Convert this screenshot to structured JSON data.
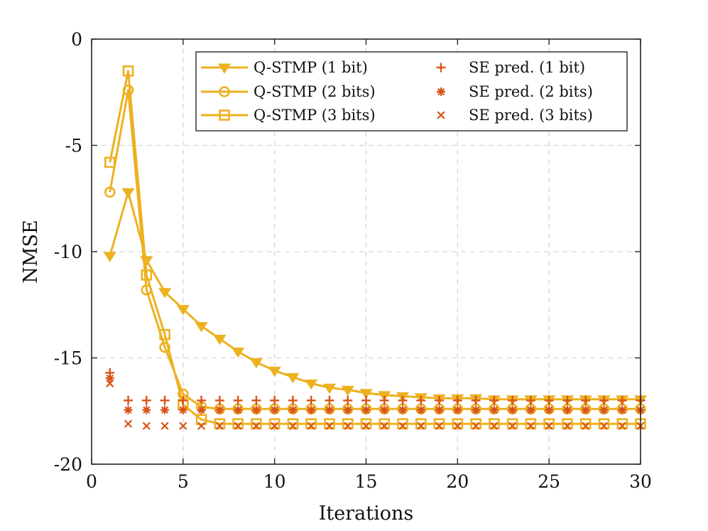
{
  "chart_data": {
    "type": "line",
    "title": "",
    "xlabel": "Iterations",
    "ylabel": "NMSE",
    "xlim": [
      0,
      30
    ],
    "ylim": [
      -20,
      0
    ],
    "xticks": [
      0,
      5,
      10,
      15,
      20,
      25,
      30
    ],
    "yticks": [
      0,
      -5,
      -10,
      -15,
      -20
    ],
    "grid": true,
    "legend_position": "top-right",
    "colors": {
      "qstmp": "#EDB120",
      "se": "#D95319"
    },
    "x": [
      1,
      2,
      3,
      4,
      5,
      6,
      7,
      8,
      9,
      10,
      11,
      12,
      13,
      14,
      15,
      16,
      17,
      18,
      19,
      20,
      21,
      22,
      23,
      24,
      25,
      26,
      27,
      28,
      29,
      30
    ],
    "series": [
      {
        "name": "Q-STMP (1 bit)",
        "kind": "line",
        "marker": "triangle-down",
        "color": "#EDB120",
        "values": [
          -10.2,
          -7.2,
          -10.4,
          -11.9,
          -12.7,
          -13.5,
          -14.1,
          -14.7,
          -15.2,
          -15.6,
          -15.9,
          -16.2,
          -16.4,
          -16.5,
          -16.65,
          -16.75,
          -16.8,
          -16.85,
          -16.9,
          -16.9,
          -16.9,
          -16.95,
          -16.95,
          -16.95,
          -16.95,
          -16.95,
          -16.95,
          -16.95,
          -16.95,
          -16.95
        ]
      },
      {
        "name": "Q-STMP (2 bits)",
        "kind": "line",
        "marker": "circle",
        "color": "#EDB120",
        "values": [
          -7.2,
          -2.4,
          -11.8,
          -14.5,
          -16.7,
          -17.3,
          -17.4,
          -17.4,
          -17.4,
          -17.4,
          -17.4,
          -17.4,
          -17.4,
          -17.4,
          -17.4,
          -17.4,
          -17.4,
          -17.4,
          -17.4,
          -17.4,
          -17.4,
          -17.4,
          -17.4,
          -17.4,
          -17.4,
          -17.4,
          -17.4,
          -17.4,
          -17.4,
          -17.4
        ]
      },
      {
        "name": "Q-STMP (3 bits)",
        "kind": "line",
        "marker": "square",
        "color": "#EDB120",
        "values": [
          -5.8,
          -1.5,
          -11.1,
          -13.9,
          -17.2,
          -17.9,
          -18.1,
          -18.1,
          -18.1,
          -18.1,
          -18.1,
          -18.1,
          -18.1,
          -18.1,
          -18.1,
          -18.1,
          -18.1,
          -18.1,
          -18.1,
          -18.1,
          -18.1,
          -18.1,
          -18.1,
          -18.1,
          -18.1,
          -18.1,
          -18.1,
          -18.1,
          -18.1,
          -18.1
        ]
      },
      {
        "name": "SE pred. (1 bit)",
        "kind": "scatter",
        "marker": "plus",
        "color": "#D95319",
        "values": [
          -15.7,
          -17.0,
          -17.0,
          -17.0,
          -17.0,
          -17.0,
          -17.0,
          -17.0,
          -17.0,
          -17.0,
          -17.0,
          -17.0,
          -17.0,
          -17.0,
          -17.0,
          -17.0,
          -17.0,
          -17.0,
          -17.0,
          -17.0,
          -17.0,
          -17.0,
          -17.0,
          -17.0,
          -17.0,
          -17.0,
          -17.0,
          -17.0,
          -17.0,
          -17.0
        ]
      },
      {
        "name": "SE pred. (2 bits)",
        "kind": "scatter",
        "marker": "asterisk",
        "color": "#D95319",
        "values": [
          -15.95,
          -17.45,
          -17.45,
          -17.45,
          -17.45,
          -17.45,
          -17.45,
          -17.45,
          -17.45,
          -17.45,
          -17.45,
          -17.45,
          -17.45,
          -17.45,
          -17.45,
          -17.45,
          -17.45,
          -17.45,
          -17.45,
          -17.45,
          -17.45,
          -17.45,
          -17.45,
          -17.45,
          -17.45,
          -17.45,
          -17.45,
          -17.45,
          -17.45,
          -17.45
        ]
      },
      {
        "name": "SE pred. (3 bits)",
        "kind": "scatter",
        "marker": "cross",
        "color": "#D95319",
        "values": [
          -16.2,
          -18.1,
          -18.2,
          -18.2,
          -18.2,
          -18.2,
          -18.2,
          -18.2,
          -18.2,
          -18.2,
          -18.2,
          -18.2,
          -18.2,
          -18.2,
          -18.2,
          -18.2,
          -18.2,
          -18.2,
          -18.2,
          -18.2,
          -18.2,
          -18.2,
          -18.2,
          -18.2,
          -18.2,
          -18.2,
          -18.2,
          -18.2,
          -18.2,
          -18.2
        ]
      }
    ]
  }
}
